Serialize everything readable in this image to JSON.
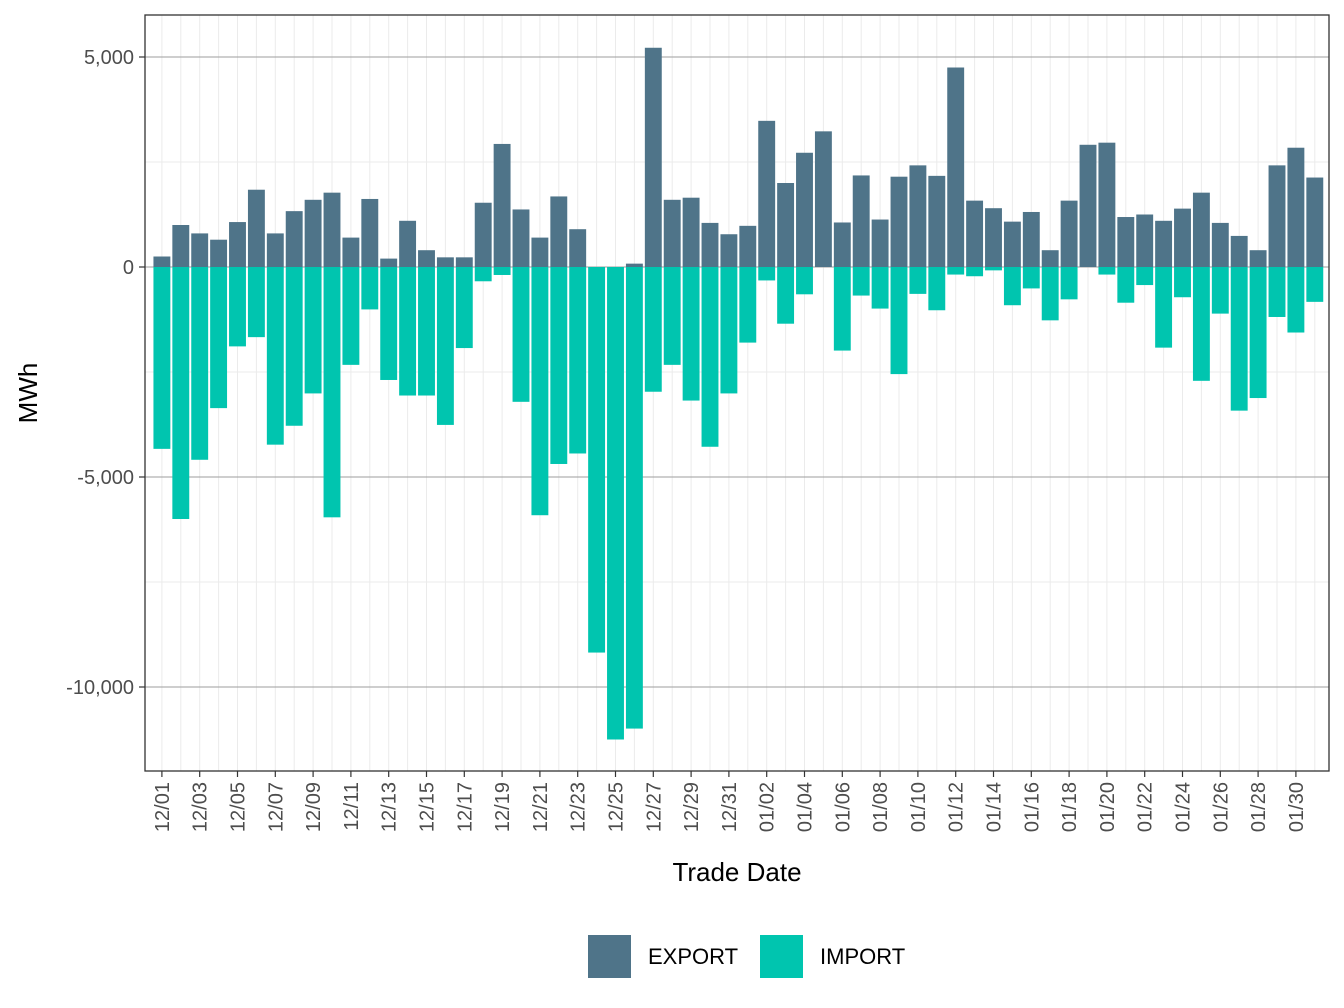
{
  "chart_data": {
    "type": "bar",
    "stacked": true,
    "title": "",
    "xlabel": "Trade Date",
    "ylabel": "MWh",
    "ylim": [
      -12000,
      6000
    ],
    "yticks": [
      5000,
      0,
      -5000,
      -10000
    ],
    "ytick_labels": [
      "5,000",
      "0",
      "-5,000",
      "-10,000"
    ],
    "grid": true,
    "legend_position": "bottom",
    "categories": [
      "12/01",
      "12/02",
      "12/03",
      "12/04",
      "12/05",
      "12/06",
      "12/07",
      "12/08",
      "12/09",
      "12/10",
      "12/11",
      "12/12",
      "12/13",
      "12/14",
      "12/15",
      "12/16",
      "12/17",
      "12/18",
      "12/19",
      "12/20",
      "12/21",
      "12/22",
      "12/23",
      "12/24",
      "12/25",
      "12/26",
      "12/27",
      "12/28",
      "12/29",
      "12/30",
      "12/31",
      "01/01",
      "01/02",
      "01/03",
      "01/04",
      "01/05",
      "01/06",
      "01/07",
      "01/08",
      "01/09",
      "01/10",
      "01/11",
      "01/12",
      "01/13",
      "01/14",
      "01/15",
      "01/16",
      "01/17",
      "01/18",
      "01/19",
      "01/20",
      "01/21",
      "01/22",
      "01/23",
      "01/24",
      "01/25",
      "01/26",
      "01/27",
      "01/28",
      "01/29",
      "01/30",
      "01/31"
    ],
    "tick_labels": [
      "12/01",
      "12/03",
      "12/05",
      "12/07",
      "12/09",
      "12/11",
      "12/13",
      "12/15",
      "12/17",
      "12/19",
      "12/21",
      "12/23",
      "12/25",
      "12/27",
      "12/29",
      "12/31",
      "01/02",
      "01/04",
      "01/06",
      "01/08",
      "01/10",
      "01/12",
      "01/14",
      "01/16",
      "01/18",
      "01/20",
      "01/22",
      "01/24",
      "01/26",
      "01/28",
      "01/30"
    ],
    "series": [
      {
        "name": "EXPORT",
        "color": "#4f7489",
        "values": [
          250,
          1000,
          800,
          650,
          1070,
          1840,
          800,
          1330,
          1600,
          1770,
          700,
          1620,
          200,
          1100,
          400,
          230,
          230,
          1530,
          2930,
          1370,
          700,
          1680,
          900,
          0,
          0,
          80,
          5220,
          1600,
          1650,
          1050,
          780,
          980,
          3480,
          2000,
          2720,
          3230,
          1060,
          2180,
          1130,
          2150,
          2420,
          2170,
          4750,
          1580,
          1400,
          1080,
          1310,
          400,
          1580,
          2910,
          2960,
          1190,
          1250,
          1100,
          1390,
          1770,
          1050,
          740,
          400,
          2420,
          2840,
          2130
        ]
      },
      {
        "name": "IMPORT",
        "color": "#00c5af",
        "values": [
          -4330,
          -6000,
          -4590,
          -3360,
          -1890,
          -1670,
          -4230,
          -3780,
          -3010,
          -5960,
          -2330,
          -1010,
          -2690,
          -3060,
          -3060,
          -3760,
          -1930,
          -340,
          -190,
          -3210,
          -5910,
          -4690,
          -4440,
          -9180,
          -11250,
          -10990,
          -2970,
          -2330,
          -3180,
          -4280,
          -3010,
          -1800,
          -320,
          -1350,
          -650,
          0,
          -1990,
          -680,
          -990,
          -2550,
          -640,
          -1030,
          -180,
          -220,
          -80,
          -910,
          -510,
          -1270,
          -770,
          0,
          -180,
          -850,
          -430,
          -1920,
          -720,
          -2710,
          -1110,
          -3420,
          -3120,
          -1190,
          -1560,
          -830
        ]
      }
    ]
  }
}
